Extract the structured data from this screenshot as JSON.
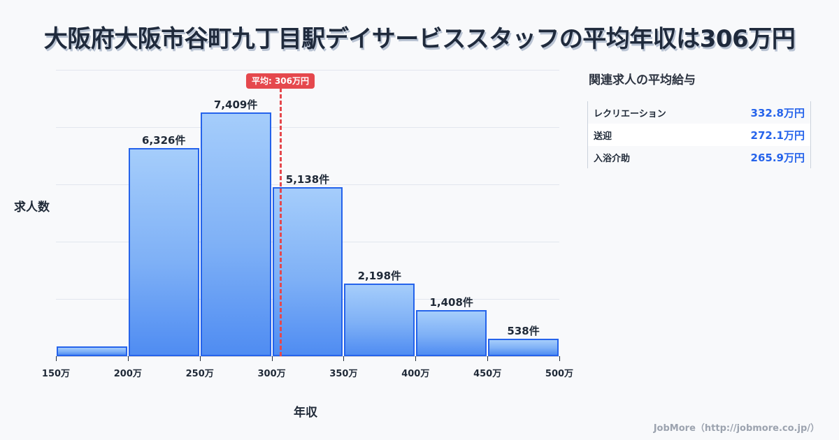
{
  "title": "大阪府大阪市谷町九丁目駅デイサービススタッフの平均年収は306万円",
  "chart_data": {
    "type": "bar",
    "title": "大阪府大阪市谷町九丁目駅デイサービススタッフの平均年収は306万円",
    "xlabel": "年収",
    "ylabel": "求人数",
    "x_ticks": [
      "150万",
      "200万",
      "250万",
      "300万",
      "350万",
      "400万",
      "450万",
      "500万"
    ],
    "bins": [
      {
        "range": "150万-200万",
        "value": 300,
        "label": ""
      },
      {
        "range": "200万-250万",
        "value": 6326,
        "label": "6,326件"
      },
      {
        "range": "250万-300万",
        "value": 7409,
        "label": "7,409件"
      },
      {
        "range": "300万-350万",
        "value": 5138,
        "label": "5,138件"
      },
      {
        "range": "350万-400万",
        "value": 2198,
        "label": "2,198件"
      },
      {
        "range": "400万-450万",
        "value": 1408,
        "label": "1,408件"
      },
      {
        "range": "450万-500万",
        "value": 538,
        "label": "538件"
      }
    ],
    "categories": [
      "150万-200万",
      "200万-250万",
      "250万-300万",
      "300万-350万",
      "350万-400万",
      "400万-450万",
      "450万-500万"
    ],
    "values": [
      300,
      6326,
      7409,
      5138,
      2198,
      1408,
      538
    ],
    "average": {
      "value": 306,
      "label": "平均: 306万円"
    },
    "grid": true,
    "legend": "none"
  },
  "axes": {
    "xlabel": "年収",
    "ylabel": "求人数"
  },
  "bar_labels": [
    "",
    "6,326件",
    "7,409件",
    "5,138件",
    "2,198件",
    "1,408件",
    "538件"
  ],
  "average_badge": "平均: 306万円",
  "related": {
    "title": "関連求人の平均給与",
    "rows": [
      {
        "name": "レクリエーション",
        "value": "332.8万円"
      },
      {
        "name": "送迎",
        "value": "272.1万円"
      },
      {
        "name": "入浴介助",
        "value": "265.9万円"
      }
    ]
  },
  "footer": "JobMore（http://jobmore.co.jp/）",
  "colors": {
    "bar_border": "#2563eb",
    "bar_fill_top": "#a5cdfb",
    "bar_fill_bottom": "#4f8cf2",
    "average_line": "#e5484d",
    "value_text": "#2563eb"
  }
}
